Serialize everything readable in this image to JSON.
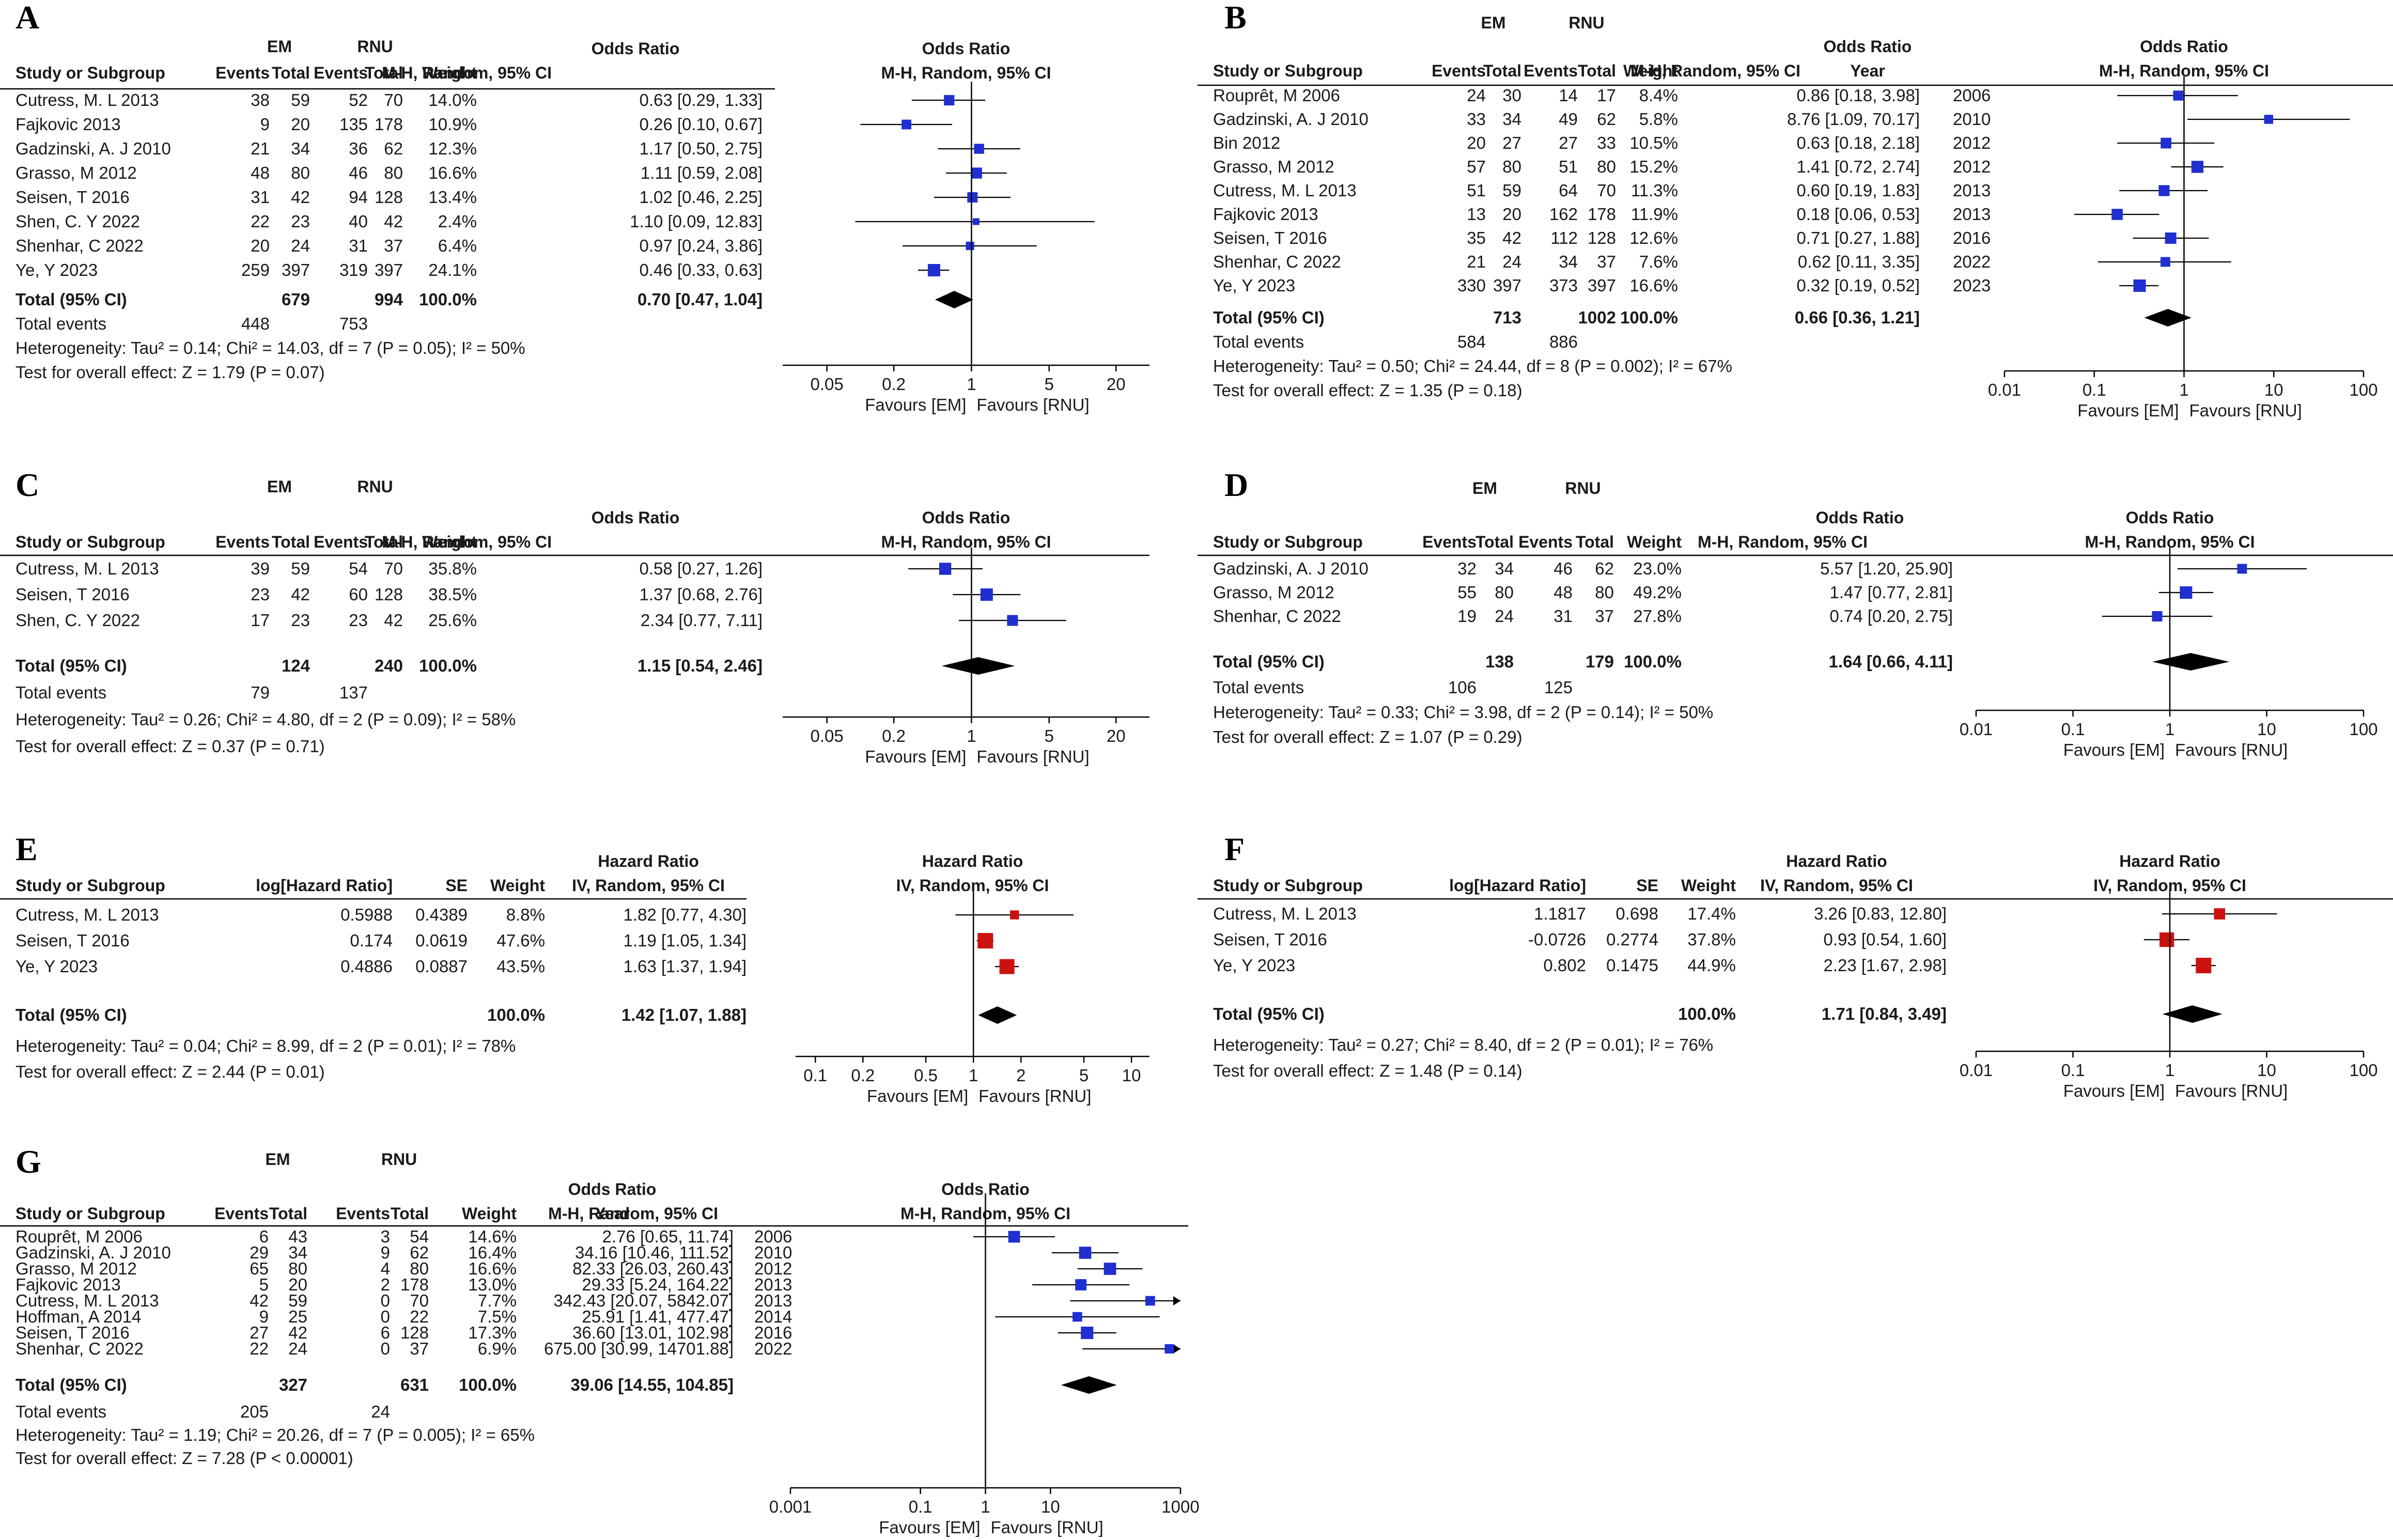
{
  "colors": {
    "or_box": "#1f2fd1",
    "hr_box": "#cc1111",
    "diamond": "#000000",
    "text": "#1a1a1a"
  },
  "chart_data": [
    {
      "panel": "A",
      "type": "forest",
      "effect": "Odds Ratio",
      "method": "M-H, Random, 95% CI",
      "has_year": false,
      "groups": [
        "EM",
        "RNU"
      ],
      "columns": [
        "Study or Subgroup",
        "Events",
        "Total",
        "Events",
        "Total",
        "Weight",
        "M-H, Random, 95% CI"
      ],
      "scale": {
        "ticks": [
          "0.05",
          "0.2",
          "1",
          "5",
          "20"
        ],
        "min": 0.02,
        "max": 40
      },
      "favours": [
        "Favours [EM]",
        "Favours [RNU]"
      ],
      "studies": [
        {
          "name": "Cutress, M. L 2013",
          "cells": [
            "38",
            "59",
            "52",
            "70",
            "14.0%"
          ],
          "ci": "0.63 [0.29, 1.33]",
          "est": 0.63,
          "lo": 0.29,
          "hi": 1.33,
          "w": 14.0
        },
        {
          "name": "Fajkovic 2013",
          "cells": [
            "9",
            "20",
            "135",
            "178",
            "10.9%"
          ],
          "ci": "0.26 [0.10, 0.67]",
          "est": 0.26,
          "lo": 0.1,
          "hi": 0.67,
          "w": 10.9
        },
        {
          "name": "Gadzinski, A. J 2010",
          "cells": [
            "21",
            "34",
            "36",
            "62",
            "12.3%"
          ],
          "ci": "1.17 [0.50, 2.75]",
          "est": 1.17,
          "lo": 0.5,
          "hi": 2.75,
          "w": 12.3
        },
        {
          "name": "Grasso, M 2012",
          "cells": [
            "48",
            "80",
            "46",
            "80",
            "16.6%"
          ],
          "ci": "1.11 [0.59, 2.08]",
          "est": 1.11,
          "lo": 0.59,
          "hi": 2.08,
          "w": 16.6
        },
        {
          "name": "Seisen, T 2016",
          "cells": [
            "31",
            "42",
            "94",
            "128",
            "13.4%"
          ],
          "ci": "1.02 [0.46, 2.25]",
          "est": 1.02,
          "lo": 0.46,
          "hi": 2.25,
          "w": 13.4
        },
        {
          "name": "Shen, C. Y 2022",
          "cells": [
            "22",
            "23",
            "40",
            "42",
            "2.4%"
          ],
          "ci": "1.10 [0.09, 12.83]",
          "est": 1.1,
          "lo": 0.09,
          "hi": 12.83,
          "w": 2.4
        },
        {
          "name": "Shenhar, C 2022",
          "cells": [
            "20",
            "24",
            "31",
            "37",
            "6.4%"
          ],
          "ci": "0.97 [0.24, 3.86]",
          "est": 0.97,
          "lo": 0.24,
          "hi": 3.86,
          "w": 6.4
        },
        {
          "name": "Ye, Y 2023",
          "cells": [
            "259",
            "397",
            "319",
            "397",
            "24.1%"
          ],
          "ci": "0.46 [0.33, 0.63]",
          "est": 0.46,
          "lo": 0.33,
          "hi": 0.63,
          "w": 24.1
        }
      ],
      "total": {
        "label": "Total (95% CI)",
        "cells": [
          "",
          "679",
          "",
          "994",
          "100.0%"
        ],
        "ci": "0.70 [0.47, 1.04]",
        "est": 0.7,
        "lo": 0.47,
        "hi": 1.04
      },
      "total_events": {
        "label": "Total events",
        "em": "448",
        "rnu": "753"
      },
      "heterogeneity": "Heterogeneity: Tau² = 0.14; Chi² = 14.03, df = 7 (P = 0.05); I² = 50%",
      "overall": "Test for overall effect: Z = 1.79 (P = 0.07)"
    },
    {
      "panel": "B",
      "type": "forest",
      "effect": "Odds Ratio",
      "method": "M-H, Random, 95% CI",
      "has_year": true,
      "groups": [
        "EM",
        "RNU"
      ],
      "columns": [
        "Study or Subgroup",
        "Events",
        "Total",
        "Events",
        "Total",
        "Weight",
        "M-H, Random, 95% CI",
        "Year"
      ],
      "scale": {
        "ticks": [
          "0.01",
          "0.1",
          "1",
          "10",
          "100"
        ],
        "min": 0.01,
        "max": 100
      },
      "favours": [
        "Favours [EM]",
        "Favours [RNU]"
      ],
      "studies": [
        {
          "name": "Rouprêt, M 2006",
          "cells": [
            "24",
            "30",
            "14",
            "17",
            "8.4%"
          ],
          "ci": "0.86 [0.18, 3.98]",
          "year": "2006",
          "est": 0.86,
          "lo": 0.18,
          "hi": 3.98,
          "w": 8.4
        },
        {
          "name": "Gadzinski, A. J 2010",
          "cells": [
            "33",
            "34",
            "49",
            "62",
            "5.8%"
          ],
          "ci": "8.76 [1.09, 70.17]",
          "year": "2010",
          "est": 8.76,
          "lo": 1.09,
          "hi": 70.17,
          "w": 5.8
        },
        {
          "name": "Bin 2012",
          "cells": [
            "20",
            "27",
            "27",
            "33",
            "10.5%"
          ],
          "ci": "0.63 [0.18, 2.18]",
          "year": "2012",
          "est": 0.63,
          "lo": 0.18,
          "hi": 2.18,
          "w": 10.5
        },
        {
          "name": "Grasso, M 2012",
          "cells": [
            "57",
            "80",
            "51",
            "80",
            "15.2%"
          ],
          "ci": "1.41 [0.72, 2.74]",
          "year": "2012",
          "est": 1.41,
          "lo": 0.72,
          "hi": 2.74,
          "w": 15.2
        },
        {
          "name": "Cutress, M. L 2013",
          "cells": [
            "51",
            "59",
            "64",
            "70",
            "11.3%"
          ],
          "ci": "0.60 [0.19, 1.83]",
          "year": "2013",
          "est": 0.6,
          "lo": 0.19,
          "hi": 1.83,
          "w": 11.3
        },
        {
          "name": "Fajkovic 2013",
          "cells": [
            "13",
            "20",
            "162",
            "178",
            "11.9%"
          ],
          "ci": "0.18 [0.06, 0.53]",
          "year": "2013",
          "est": 0.18,
          "lo": 0.06,
          "hi": 0.53,
          "w": 11.9
        },
        {
          "name": "Seisen, T 2016",
          "cells": [
            "35",
            "42",
            "112",
            "128",
            "12.6%"
          ],
          "ci": "0.71 [0.27, 1.88]",
          "year": "2016",
          "est": 0.71,
          "lo": 0.27,
          "hi": 1.88,
          "w": 12.6
        },
        {
          "name": "Shenhar, C 2022",
          "cells": [
            "21",
            "24",
            "34",
            "37",
            "7.6%"
          ],
          "ci": "0.62 [0.11, 3.35]",
          "year": "2022",
          "est": 0.62,
          "lo": 0.11,
          "hi": 3.35,
          "w": 7.6
        },
        {
          "name": "Ye, Y 2023",
          "cells": [
            "330",
            "397",
            "373",
            "397",
            "16.6%"
          ],
          "ci": "0.32 [0.19, 0.52]",
          "year": "2023",
          "est": 0.32,
          "lo": 0.19,
          "hi": 0.52,
          "w": 16.6
        }
      ],
      "total": {
        "label": "Total (95% CI)",
        "cells": [
          "",
          "713",
          "",
          "1002",
          "100.0%"
        ],
        "ci": "0.66 [0.36, 1.21]",
        "est": 0.66,
        "lo": 0.36,
        "hi": 1.21
      },
      "total_events": {
        "label": "Total events",
        "em": "584",
        "rnu": "886"
      },
      "heterogeneity": "Heterogeneity: Tau² = 0.50; Chi² = 24.44, df = 8 (P = 0.002); I² = 67%",
      "overall": "Test for overall effect: Z = 1.35 (P = 0.18)"
    },
    {
      "panel": "C",
      "type": "forest",
      "effect": "Odds Ratio",
      "method": "M-H, Random, 95% CI",
      "has_year": false,
      "groups": [
        "EM",
        "RNU"
      ],
      "columns": [
        "Study or Subgroup",
        "Events",
        "Total",
        "Events",
        "Total",
        "Weight",
        "M-H, Random, 95% CI"
      ],
      "scale": {
        "ticks": [
          "0.05",
          "0.2",
          "1",
          "5",
          "20"
        ],
        "min": 0.02,
        "max": 40
      },
      "favours": [
        "Favours [EM]",
        "Favours [RNU]"
      ],
      "studies": [
        {
          "name": "Cutress, M. L 2013",
          "cells": [
            "39",
            "59",
            "54",
            "70",
            "35.8%"
          ],
          "ci": "0.58 [0.27, 1.26]",
          "est": 0.58,
          "lo": 0.27,
          "hi": 1.26,
          "w": 35.8
        },
        {
          "name": "Seisen, T 2016",
          "cells": [
            "23",
            "42",
            "60",
            "128",
            "38.5%"
          ],
          "ci": "1.37 [0.68, 2.76]",
          "est": 1.37,
          "lo": 0.68,
          "hi": 2.76,
          "w": 38.5
        },
        {
          "name": "Shen, C. Y 2022",
          "cells": [
            "17",
            "23",
            "23",
            "42",
            "25.6%"
          ],
          "ci": "2.34 [0.77, 7.11]",
          "est": 2.34,
          "lo": 0.77,
          "hi": 7.11,
          "w": 25.6
        }
      ],
      "total": {
        "label": "Total (95% CI)",
        "cells": [
          "",
          "124",
          "",
          "240",
          "100.0%"
        ],
        "ci": "1.15 [0.54, 2.46]",
        "est": 1.15,
        "lo": 0.54,
        "hi": 2.46
      },
      "total_events": {
        "label": "Total events",
        "em": "79",
        "rnu": "137"
      },
      "heterogeneity": "Heterogeneity: Tau² = 0.26; Chi² = 4.80, df = 2 (P = 0.09); I² = 58%",
      "overall": "Test for overall effect: Z = 0.37 (P = 0.71)"
    },
    {
      "panel": "D",
      "type": "forest",
      "effect": "Odds Ratio",
      "method": "M-H, Random, 95% CI",
      "has_year": false,
      "groups": [
        "EM",
        "RNU"
      ],
      "columns": [
        "Study or Subgroup",
        "Events",
        "Total",
        "Events",
        "Total",
        "Weight",
        "M-H, Random, 95% CI"
      ],
      "scale": {
        "ticks": [
          "0.01",
          "0.1",
          "1",
          "10",
          "100"
        ],
        "min": 0.01,
        "max": 100
      },
      "favours": [
        "Favours [EM]",
        "Favours [RNU]"
      ],
      "studies": [
        {
          "name": "Gadzinski, A. J 2010",
          "cells": [
            "32",
            "34",
            "46",
            "62",
            "23.0%"
          ],
          "ci": "5.57 [1.20, 25.90]",
          "est": 5.57,
          "lo": 1.2,
          "hi": 25.9,
          "w": 23.0
        },
        {
          "name": "Grasso, M 2012",
          "cells": [
            "55",
            "80",
            "48",
            "80",
            "49.2%"
          ],
          "ci": "1.47 [0.77, 2.81]",
          "est": 1.47,
          "lo": 0.77,
          "hi": 2.81,
          "w": 49.2
        },
        {
          "name": "Shenhar, C 2022",
          "cells": [
            "19",
            "24",
            "31",
            "37",
            "27.8%"
          ],
          "ci": "0.74 [0.20, 2.75]",
          "est": 0.74,
          "lo": 0.2,
          "hi": 2.75,
          "w": 27.8
        }
      ],
      "total": {
        "label": "Total (95% CI)",
        "cells": [
          "",
          "138",
          "",
          "179",
          "100.0%"
        ],
        "ci": "1.64 [0.66, 4.11]",
        "est": 1.64,
        "lo": 0.66,
        "hi": 4.11
      },
      "total_events": {
        "label": "Total events",
        "em": "106",
        "rnu": "125"
      },
      "heterogeneity": "Heterogeneity: Tau² = 0.33; Chi² = 3.98, df = 2 (P = 0.14); I² = 50%",
      "overall": "Test for overall effect: Z = 1.07 (P = 0.29)"
    },
    {
      "panel": "E",
      "type": "forest",
      "effect": "Hazard Ratio",
      "method": "IV, Random, 95% CI",
      "has_year": false,
      "columns": [
        "Study or Subgroup",
        "log[Hazard Ratio]",
        "SE",
        "Weight",
        "IV, Random, 95% CI"
      ],
      "scale": {
        "ticks": [
          "0.1",
          "0.2",
          "0.5",
          "1",
          "2",
          "5",
          "10"
        ],
        "min": 0.075,
        "max": 13
      },
      "favours": [
        "Favours [EM]",
        "Favours [RNU]"
      ],
      "studies": [
        {
          "name": "Cutress, M. L 2013",
          "cells": [
            "0.5988",
            "0.4389",
            "8.8%"
          ],
          "ci": "1.82 [0.77, 4.30]",
          "est": 1.82,
          "lo": 0.77,
          "hi": 4.3,
          "w": 8.8
        },
        {
          "name": "Seisen, T 2016",
          "cells": [
            "0.174",
            "0.0619",
            "47.6%"
          ],
          "ci": "1.19 [1.05, 1.34]",
          "est": 1.19,
          "lo": 1.05,
          "hi": 1.34,
          "w": 47.6
        },
        {
          "name": "Ye, Y 2023",
          "cells": [
            "0.4886",
            "0.0887",
            "43.5%"
          ],
          "ci": "1.63 [1.37, 1.94]",
          "est": 1.63,
          "lo": 1.37,
          "hi": 1.94,
          "w": 43.5
        }
      ],
      "total": {
        "label": "Total (95% CI)",
        "cells": [
          "",
          "",
          "100.0%"
        ],
        "ci": "1.42 [1.07, 1.88]",
        "est": 1.42,
        "lo": 1.07,
        "hi": 1.88
      },
      "heterogeneity": "Heterogeneity: Tau² = 0.04; Chi² = 8.99, df = 2 (P = 0.01); I² = 78%",
      "overall": "Test for overall effect: Z = 2.44 (P = 0.01)"
    },
    {
      "panel": "F",
      "type": "forest",
      "effect": "Hazard Ratio",
      "method": "IV, Random, 95% CI",
      "has_year": false,
      "columns": [
        "Study or Subgroup",
        "log[Hazard Ratio]",
        "SE",
        "Weight",
        "IV, Random, 95% CI"
      ],
      "scale": {
        "ticks": [
          "0.01",
          "0.1",
          "1",
          "10",
          "100"
        ],
        "min": 0.01,
        "max": 100
      },
      "favours": [
        "Favours [EM]",
        "Favours [RNU]"
      ],
      "studies": [
        {
          "name": "Cutress, M. L 2013",
          "cells": [
            "1.1817",
            "0.698",
            "17.4%"
          ],
          "ci": "3.26 [0.83, 12.80]",
          "est": 3.26,
          "lo": 0.83,
          "hi": 12.8,
          "w": 17.4
        },
        {
          "name": "Seisen, T 2016",
          "cells": [
            "-0.0726",
            "0.2774",
            "37.8%"
          ],
          "ci": "0.93 [0.54, 1.60]",
          "est": 0.93,
          "lo": 0.54,
          "hi": 1.6,
          "w": 37.8
        },
        {
          "name": "Ye, Y 2023",
          "cells": [
            "0.802",
            "0.1475",
            "44.9%"
          ],
          "ci": "2.23 [1.67, 2.98]",
          "est": 2.23,
          "lo": 1.67,
          "hi": 2.98,
          "w": 44.9
        }
      ],
      "total": {
        "label": "Total (95% CI)",
        "cells": [
          "",
          "",
          "100.0%"
        ],
        "ci": "1.71 [0.84, 3.49]",
        "est": 1.71,
        "lo": 0.84,
        "hi": 3.49
      },
      "heterogeneity": "Heterogeneity: Tau² = 0.27; Chi² = 8.40, df = 2 (P = 0.01); I² = 76%",
      "overall": "Test for overall effect: Z = 1.48 (P = 0.14)"
    },
    {
      "panel": "G",
      "type": "forest",
      "effect": "Odds Ratio",
      "method": "M-H, Random, 95% CI",
      "has_year": true,
      "groups": [
        "EM",
        "RNU"
      ],
      "columns": [
        "Study or Subgroup",
        "Events",
        "Total",
        "Events",
        "Total",
        "Weight",
        "M-H, Random, 95% CI",
        "Year"
      ],
      "scale": {
        "ticks": [
          "0.001",
          "0.1",
          "1",
          "10",
          "1000"
        ],
        "min": 0.001,
        "max": 1000
      },
      "favours": [
        "Favours [EM]",
        "Favours [RNU]"
      ],
      "studies": [
        {
          "name": "Rouprêt, M 2006",
          "cells": [
            "6",
            "43",
            "3",
            "54",
            "14.6%"
          ],
          "ci": "2.76 [0.65, 11.74]",
          "year": "2006",
          "est": 2.76,
          "lo": 0.65,
          "hi": 11.74,
          "w": 14.6
        },
        {
          "name": "Gadzinski, A. J 2010",
          "cells": [
            "29",
            "34",
            "9",
            "62",
            "16.4%"
          ],
          "ci": "34.16 [10.46, 111.52]",
          "year": "2010",
          "est": 34.16,
          "lo": 10.46,
          "hi": 111.52,
          "w": 16.4
        },
        {
          "name": "Grasso, M 2012",
          "cells": [
            "65",
            "80",
            "4",
            "80",
            "16.6%"
          ],
          "ci": "82.33 [26.03, 260.43]",
          "year": "2012",
          "est": 82.33,
          "lo": 26.03,
          "hi": 260.43,
          "w": 16.6
        },
        {
          "name": "Fajkovic 2013",
          "cells": [
            "5",
            "20",
            "2",
            "178",
            "13.0%"
          ],
          "ci": "29.33 [5.24, 164.22]",
          "year": "2013",
          "est": 29.33,
          "lo": 5.24,
          "hi": 164.22,
          "w": 13.0
        },
        {
          "name": "Cutress, M. L 2013",
          "cells": [
            "42",
            "59",
            "0",
            "70",
            "7.7%"
          ],
          "ci": "342.43 [20.07, 5842.07]",
          "year": "2013",
          "est": 342.43,
          "lo": 20.07,
          "hi": 5842.07,
          "w": 7.7
        },
        {
          "name": "Hoffman, A 2014",
          "cells": [
            "9",
            "25",
            "0",
            "22",
            "7.5%"
          ],
          "ci": "25.91 [1.41, 477.47]",
          "year": "2014",
          "est": 25.91,
          "lo": 1.41,
          "hi": 477.47,
          "w": 7.5
        },
        {
          "name": "Seisen, T 2016",
          "cells": [
            "27",
            "42",
            "6",
            "128",
            "17.3%"
          ],
          "ci": "36.60 [13.01, 102.98]",
          "year": "2016",
          "est": 36.6,
          "lo": 13.01,
          "hi": 102.98,
          "w": 17.3
        },
        {
          "name": "Shenhar, C 2022",
          "cells": [
            "22",
            "24",
            "0",
            "37",
            "6.9%"
          ],
          "ci": "675.00 [30.99, 14701.88]",
          "year": "2022",
          "est": 675.0,
          "lo": 30.99,
          "hi": 14701.88,
          "w": 6.9
        }
      ],
      "total": {
        "label": "Total (95% CI)",
        "cells": [
          "",
          "327",
          "",
          "631",
          "100.0%"
        ],
        "ci": "39.06 [14.55, 104.85]",
        "est": 39.06,
        "lo": 14.55,
        "hi": 104.85
      },
      "total_events": {
        "label": "Total events",
        "em": "205",
        "rnu": "24"
      },
      "heterogeneity": "Heterogeneity: Tau² = 1.19; Chi² = 20.26, df = 7 (P = 0.005); I² = 65%",
      "overall": "Test for overall effect: Z = 7.28 (P < 0.00001)"
    }
  ]
}
